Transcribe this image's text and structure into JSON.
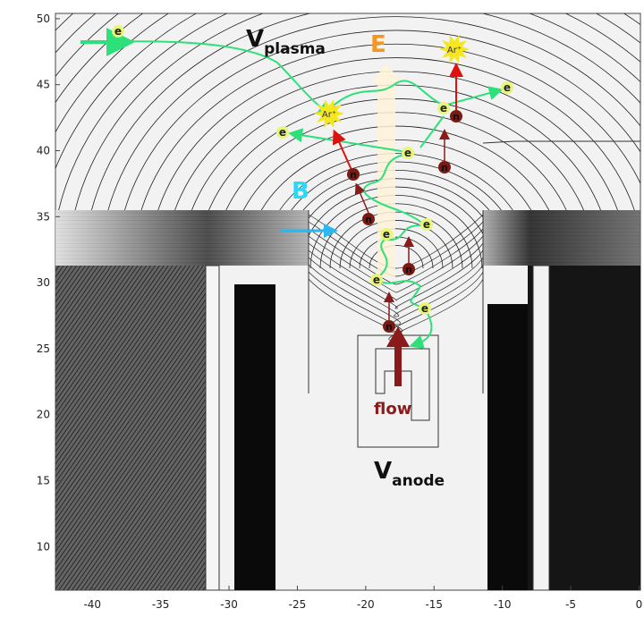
{
  "axes": {
    "xlim": [
      -42.7,
      0.1
    ],
    "ylim": [
      6.7,
      50.4
    ],
    "xticks": [
      -40,
      -35,
      -30,
      -25,
      -20,
      -15,
      -10,
      -5,
      0
    ],
    "yticks": [
      50,
      45,
      40,
      35,
      30,
      25,
      20,
      15,
      10
    ]
  },
  "labels": {
    "v_plasma": {
      "main": "V",
      "sub": "plasma"
    },
    "e_field": "E",
    "b_field": "B",
    "flow": "flow",
    "v_anode": {
      "main": "V",
      "sub": "anode"
    }
  },
  "ions": [
    "Ar⁺",
    "Ar⁺"
  ],
  "electrons": [
    "e",
    "e",
    "e",
    "e",
    "e",
    "e",
    "e",
    "e",
    "e"
  ],
  "neutrals": [
    "n",
    "n",
    "n",
    "n",
    "n",
    "n"
  ]
}
